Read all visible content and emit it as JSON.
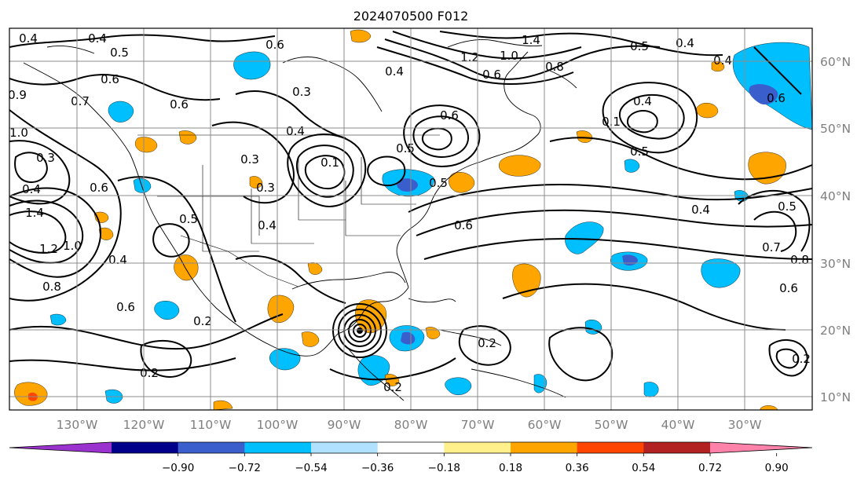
{
  "title": "2024070500 F012",
  "lon_labels": [
    "130°W",
    "120°W",
    "110°W",
    "100°W",
    "90°W",
    "80°W",
    "70°W",
    "60°W",
    "50°W",
    "40°W",
    "30°W"
  ],
  "lat_labels": [
    "60°N",
    "50°N",
    "40°N",
    "30°N",
    "20°N",
    "10°N"
  ],
  "colorbar": {
    "tick_labels": [
      "−0.90",
      "−0.72",
      "−0.54",
      "−0.36",
      "−0.18",
      "0.18",
      "0.36",
      "0.54",
      "0.72",
      "0.90"
    ],
    "colors": [
      "#9a32cd",
      "#00008b",
      "#3a5fcd",
      "#00bfff",
      "#b0e2ff",
      "#ffffff",
      "#fff08c",
      "#ffa500",
      "#ff4500",
      "#b22222",
      "#ff82ab"
    ]
  },
  "contour_labels": [
    "0.4",
    "0.4",
    "0.5",
    "0.6",
    "0.6",
    "0.6",
    "0.9",
    "0.7",
    "0.3",
    "1.0",
    "0.4",
    "1.4",
    "1.2",
    "1.0",
    "0.8",
    "0.6",
    "0.4",
    "0.6",
    "0.2",
    "0.2",
    "0.3",
    "0.3",
    "0.4",
    "0.5",
    "0.4",
    "0.3",
    "0.6",
    "0.4",
    "0.1",
    "0.5",
    "0.6",
    "1.4",
    "1.2",
    "1.0",
    "0.8",
    "0.6",
    "0.5",
    "0.4",
    "0.4",
    "0.1",
    "0.5",
    "0.4",
    "0.8",
    "0.7",
    "0.6",
    "0.5",
    "0.2",
    "0.2",
    "0.5",
    "0.6",
    "0.4",
    "0.2"
  ]
}
